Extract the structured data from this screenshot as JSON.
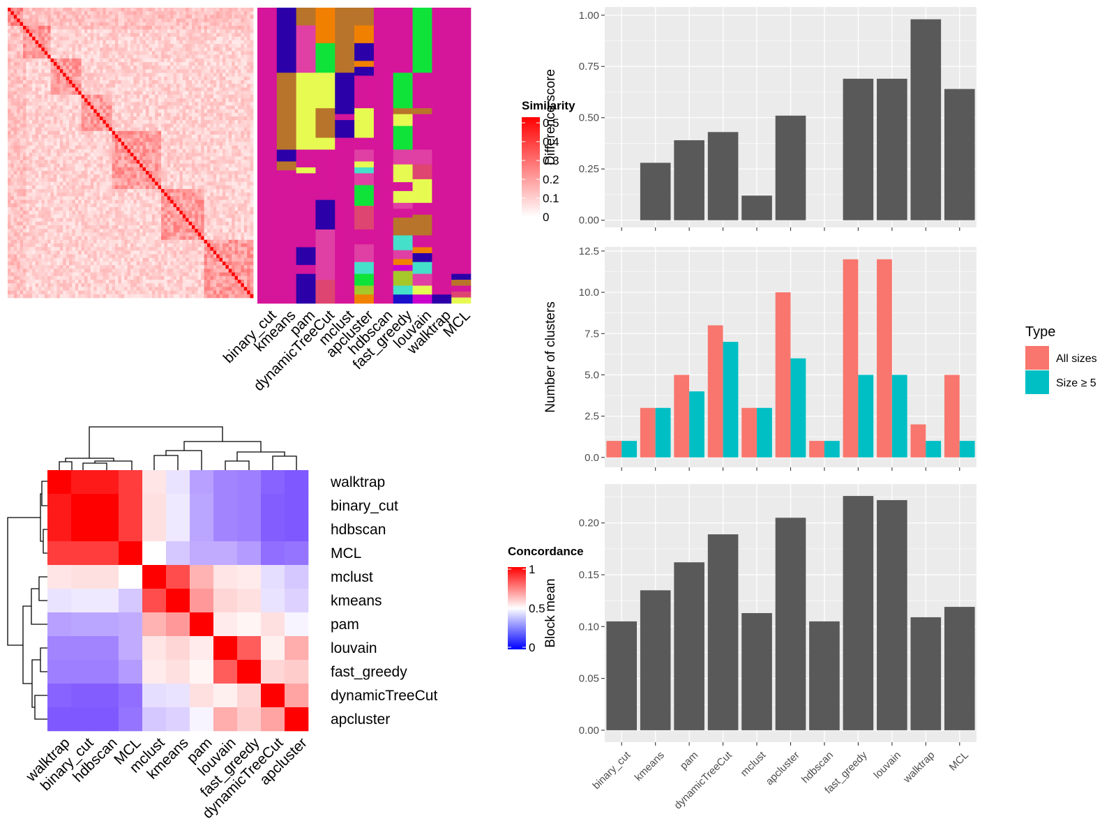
{
  "methods_order": [
    "binary_cut",
    "kmeans",
    "pam",
    "dynamicTreeCut",
    "mclust",
    "apcluster",
    "hdbscan",
    "fast_greedy",
    "louvain",
    "walktrap",
    "MCL"
  ],
  "colors": {
    "panel_bg": "#ebebeb",
    "grid": "#ffffff",
    "bar_dark": "#595959",
    "all_sizes": "#F8766D",
    "size_ge5": "#00BFC4",
    "sim_high": "#FF0000",
    "sim_low": "#FFFFFF",
    "conc_high": "#FF0000",
    "conc_mid": "#FFFFFF",
    "conc_low": "#0000FF",
    "cluster_palette": [
      "#D5159A",
      "#2B00A8",
      "#B8742A",
      "#E6FA52",
      "#0FE33A",
      "#F28000",
      "#E03FA3",
      "#DE4571",
      "#45E0C9",
      "#A6C72A",
      "#1A0FCB",
      "#CC00CC"
    ]
  },
  "similarity_heatmap": {
    "legend_title": "Similarity",
    "legend_ticks": [
      "0",
      "0.1",
      "0.2",
      "0.3",
      "0.4",
      "0.5"
    ],
    "size": 80
  },
  "assignment_heatmap": {
    "column_labels": [
      "binary_cut",
      "kmeans",
      "pam",
      "dynamicTreeCut",
      "mclust",
      "apcluster",
      "hdbscan",
      "fast_greedy",
      "louvain",
      "walktrap",
      "MCL"
    ]
  },
  "concordance_heatmap": {
    "legend_title": "Concordance",
    "legend_ticks": [
      "0",
      "0.5",
      "1"
    ],
    "row_labels": [
      "walktrap",
      "binary_cut",
      "hdbscan",
      "MCL",
      "mclust",
      "kmeans",
      "pam",
      "louvain",
      "fast_greedy",
      "dynamicTreeCut",
      "apcluster"
    ],
    "col_labels": [
      "walktrap",
      "binary_cut",
      "hdbscan",
      "MCL",
      "mclust",
      "kmeans",
      "pam",
      "louvain",
      "fast_greedy",
      "dynamicTreeCut",
      "apcluster"
    ],
    "matrix": [
      [
        1.0,
        0.95,
        0.95,
        0.88,
        0.55,
        0.45,
        0.33,
        0.28,
        0.27,
        0.22,
        0.2
      ],
      [
        0.95,
        1.0,
        1.0,
        0.88,
        0.56,
        0.46,
        0.34,
        0.28,
        0.27,
        0.21,
        0.2
      ],
      [
        0.95,
        1.0,
        1.0,
        0.88,
        0.56,
        0.46,
        0.34,
        0.28,
        0.27,
        0.21,
        0.2
      ],
      [
        0.88,
        0.88,
        0.88,
        1.0,
        0.5,
        0.4,
        0.35,
        0.35,
        0.32,
        0.24,
        0.25
      ],
      [
        0.55,
        0.56,
        0.56,
        0.5,
        1.0,
        0.85,
        0.65,
        0.55,
        0.54,
        0.44,
        0.4
      ],
      [
        0.45,
        0.46,
        0.46,
        0.4,
        0.85,
        1.0,
        0.7,
        0.58,
        0.56,
        0.45,
        0.42
      ],
      [
        0.33,
        0.34,
        0.34,
        0.35,
        0.65,
        0.7,
        1.0,
        0.54,
        0.52,
        0.56,
        0.48
      ],
      [
        0.28,
        0.28,
        0.28,
        0.35,
        0.55,
        0.58,
        0.54,
        1.0,
        0.82,
        0.53,
        0.66
      ],
      [
        0.27,
        0.27,
        0.27,
        0.32,
        0.54,
        0.56,
        0.52,
        0.82,
        1.0,
        0.58,
        0.6
      ],
      [
        0.22,
        0.21,
        0.21,
        0.24,
        0.44,
        0.45,
        0.56,
        0.53,
        0.58,
        1.0,
        0.68
      ],
      [
        0.2,
        0.2,
        0.2,
        0.25,
        0.4,
        0.42,
        0.48,
        0.66,
        0.6,
        0.68,
        1.0
      ]
    ]
  },
  "chart_data": [
    {
      "type": "bar",
      "categories": [
        "binary_cut",
        "kmeans",
        "pam",
        "dynamicTreeCut",
        "mclust",
        "apcluster",
        "hdbscan",
        "fast_greedy",
        "louvain",
        "walktrap",
        "MCL"
      ],
      "values": [
        0,
        0.28,
        0.39,
        0.43,
        0.12,
        0.51,
        0,
        0.69,
        0.69,
        0.98,
        0.64
      ],
      "xlabel": "",
      "ylabel": "Difference score",
      "ylim": [
        0,
        1.0
      ],
      "yticks": [
        "0.00",
        "0.25",
        "0.50",
        "0.75",
        "1.00"
      ],
      "grid": true
    },
    {
      "type": "bar",
      "categories": [
        "binary_cut",
        "kmeans",
        "pam",
        "dynamicTreeCut",
        "mclust",
        "apcluster",
        "hdbscan",
        "fast_greedy",
        "louvain",
        "walktrap",
        "MCL"
      ],
      "series": [
        {
          "name": "All sizes",
          "values": [
            1,
            3,
            5,
            8,
            3,
            10,
            1,
            12,
            12,
            2,
            5
          ]
        },
        {
          "name": "Size ≥ 5",
          "values": [
            1,
            3,
            4,
            7,
            3,
            6,
            1,
            5,
            5,
            1,
            1
          ]
        }
      ],
      "xlabel": "",
      "ylabel": "Number of clusters",
      "ylim": [
        0,
        12.5
      ],
      "yticks": [
        "0.0",
        "2.5",
        "5.0",
        "7.5",
        "10.0",
        "12.5"
      ],
      "legend": {
        "title": "Type",
        "position": "right"
      },
      "grid": true
    },
    {
      "type": "bar",
      "categories": [
        "binary_cut",
        "kmeans",
        "pam",
        "dynamicTreeCut",
        "mclust",
        "apcluster",
        "hdbscan",
        "fast_greedy",
        "louvain",
        "walktrap",
        "MCL"
      ],
      "values": [
        0.105,
        0.135,
        0.162,
        0.189,
        0.113,
        0.205,
        0.105,
        0.226,
        0.222,
        0.109,
        0.119
      ],
      "xlabel": "",
      "ylabel": "Block mean",
      "ylim": [
        0,
        0.23
      ],
      "yticks": [
        "0.00",
        "0.05",
        "0.10",
        "0.15",
        "0.20"
      ],
      "grid": true
    }
  ]
}
